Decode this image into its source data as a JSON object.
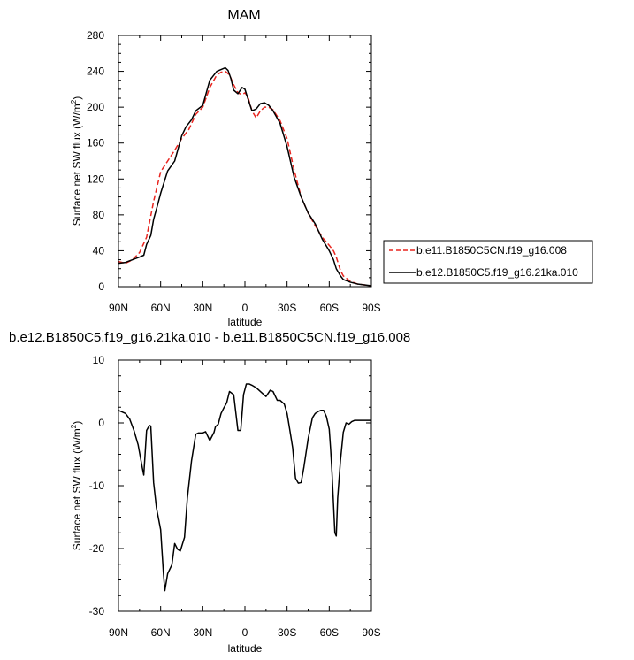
{
  "chart_data": [
    {
      "type": "line",
      "title": "MAM",
      "xlabel": "latitude",
      "ylabel": "Surface net SW flux (W/m",
      "ylabel_sup": "2",
      "ylabel_tail": ")",
      "xlim": [
        90,
        -90
      ],
      "ylim": [
        0,
        280
      ],
      "xticks": [
        90,
        60,
        30,
        0,
        -30,
        -60,
        -90
      ],
      "xtick_labels": [
        "90N",
        "60N",
        "30N",
        "0",
        "30S",
        "60S",
        "90S"
      ],
      "yticks": [
        0,
        40,
        80,
        120,
        160,
        200,
        240,
        280
      ],
      "ytick_labels": [
        "0",
        "40",
        "80",
        "120",
        "160",
        "200",
        "240",
        "280"
      ],
      "legend": "outside-right",
      "series": [
        {
          "name": "b.e11.B1850C5CN.f19_g16.008",
          "color": "#e8251f",
          "dash": "dashed",
          "x": [
            90,
            85,
            80,
            75,
            70,
            65,
            60,
            55,
            50,
            45,
            40,
            35,
            30,
            25,
            20,
            17,
            14,
            11,
            8,
            5,
            2,
            0,
            -2,
            -5,
            -8,
            -11,
            -14,
            -17,
            -20,
            -25,
            -30,
            -35,
            -40,
            -45,
            -50,
            -55,
            -60,
            -63,
            -65,
            -68,
            -70,
            -75,
            -80,
            -85,
            -90
          ],
          "y": [
            28,
            26,
            30,
            38,
            55,
            95,
            128,
            140,
            152,
            165,
            175,
            192,
            200,
            222,
            236,
            239,
            240,
            236,
            225,
            216,
            214,
            216,
            212,
            196,
            188,
            196,
            200,
            200,
            197,
            185,
            165,
            130,
            100,
            82,
            68,
            55,
            46,
            40,
            33,
            18,
            12,
            6,
            3,
            2,
            1
          ]
        },
        {
          "name": "b.e12.B1850C5.f19_g16.21ka.010",
          "color": "#000000",
          "dash": "solid",
          "x": [
            90,
            85,
            80,
            75,
            72,
            70,
            67,
            65,
            62,
            60,
            55,
            50,
            45,
            42,
            38,
            35,
            30,
            25,
            20,
            17,
            14,
            12,
            10,
            8,
            5,
            2,
            0,
            -2,
            -5,
            -8,
            -11,
            -14,
            -17,
            -20,
            -25,
            -30,
            -35,
            -40,
            -45,
            -50,
            -55,
            -60,
            -63,
            -65,
            -68,
            -70,
            -75,
            -80,
            -85,
            -90
          ],
          "y": [
            26,
            27,
            30,
            33,
            35,
            47,
            57,
            75,
            92,
            104,
            129,
            140,
            168,
            178,
            186,
            196,
            202,
            230,
            240,
            242,
            244,
            241,
            232,
            219,
            215,
            222,
            220,
            210,
            196,
            198,
            204,
            205,
            202,
            196,
            182,
            156,
            122,
            100,
            82,
            70,
            53,
            40,
            30,
            20,
            12,
            8,
            5,
            3,
            2,
            1
          ]
        }
      ]
    },
    {
      "type": "line",
      "title": "b.e12.B1850C5.f19_g16.21ka.010 - b.e11.B1850C5CN.f19_g16.008",
      "xlabel": "latitude",
      "ylabel": "Surface net SW flux (W/m",
      "ylabel_sup": "2",
      "ylabel_tail": ")",
      "xlim": [
        90,
        -90
      ],
      "ylim": [
        -30,
        10
      ],
      "xticks": [
        90,
        60,
        30,
        0,
        -30,
        -60,
        -90
      ],
      "xtick_labels": [
        "90N",
        "60N",
        "30N",
        "0",
        "30S",
        "60S",
        "90S"
      ],
      "yticks": [
        -30,
        -20,
        -10,
        0,
        10
      ],
      "ytick_labels": [
        "-30",
        "-20",
        "-10",
        "0",
        "10"
      ],
      "series": [
        {
          "color": "#000000",
          "dash": "solid",
          "x": [
            90,
            88,
            85,
            82,
            79,
            76,
            73,
            72,
            70,
            68,
            67,
            65,
            63,
            60,
            58,
            57,
            55,
            52,
            50,
            48,
            46,
            43,
            41,
            38,
            35,
            33,
            30,
            28,
            25,
            22,
            21,
            19,
            17,
            15,
            13,
            11,
            8,
            5,
            3,
            1,
            -1,
            -3,
            -5,
            -8,
            -10,
            -12,
            -15,
            -18,
            -20,
            -23,
            -25,
            -28,
            -30,
            -32,
            -34,
            -35,
            -36,
            -38,
            -40,
            -42,
            -45,
            -48,
            -50,
            -52,
            -54,
            -56,
            -58,
            -60,
            -61,
            -62,
            -64,
            -65,
            -66,
            -68,
            -70,
            -72,
            -74,
            -76,
            -78,
            -80,
            -84,
            -87,
            -90
          ],
          "y": [
            2.0,
            1.8,
            1.5,
            0.6,
            -1.2,
            -3.5,
            -7.2,
            -8.3,
            -1.2,
            -0.4,
            -0.5,
            -9.5,
            -13.5,
            -17.0,
            -24.0,
            -26.7,
            -24.0,
            -22.6,
            -19.2,
            -20.1,
            -20.4,
            -18.2,
            -12.0,
            -6.0,
            -1.8,
            -1.6,
            -1.6,
            -1.4,
            -2.8,
            -1.5,
            -0.6,
            -0.2,
            1.5,
            2.4,
            3.2,
            5.0,
            4.5,
            -1.2,
            -1.2,
            4.5,
            6.2,
            6.2,
            6.0,
            5.6,
            5.2,
            4.8,
            4.2,
            5.2,
            5.0,
            3.6,
            3.6,
            3.0,
            1.5,
            -1.2,
            -4.0,
            -6.5,
            -8.8,
            -9.6,
            -9.5,
            -7.0,
            -2.5,
            0.8,
            1.5,
            1.8,
            2.0,
            2.0,
            1.0,
            -1.0,
            -4.2,
            -8.0,
            -17.5,
            -18.0,
            -12.0,
            -6.0,
            -1.5,
            0.0,
            -0.2,
            0.2,
            0.4,
            0.4,
            0.4,
            0.4,
            0.4
          ]
        }
      ]
    }
  ]
}
